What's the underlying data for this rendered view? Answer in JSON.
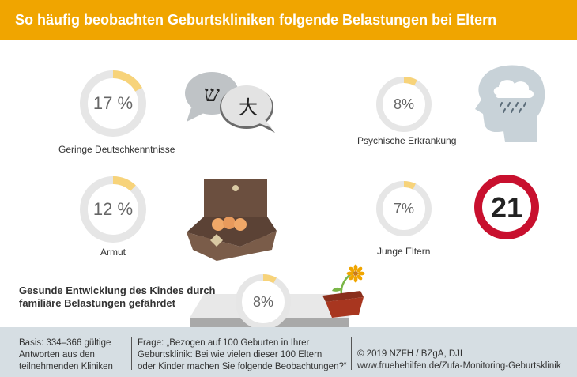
{
  "header": {
    "title": "So häufig beobachten Geburtskliniken folgende Belastungen bei Eltern"
  },
  "chart_data": {
    "type": "donut",
    "items": [
      {
        "label": "Geringe Deutschkenntnisse",
        "value": 17,
        "display": "17 %"
      },
      {
        "label": "Psychische Erkrankung",
        "value": 8,
        "display": "8%"
      },
      {
        "label": "Armut",
        "value": 12,
        "display": "12 %"
      },
      {
        "label": "Junge Eltern",
        "value": 7,
        "display": "7%"
      },
      {
        "label": "Gesunde Entwicklung des Kindes durch familiäre Belastungen gefährdet",
        "value": 8,
        "display": "8%"
      }
    ],
    "colors": {
      "fill": "#f7d37a",
      "track": "#e6e6e6"
    }
  },
  "labels": {
    "bottom_line1": "Gesunde Entwicklung des Kindes durch",
    "bottom_line2": "familiäre Belastungen gefährdet"
  },
  "illustrations": {
    "speech_chars": [
      "ש",
      "大"
    ],
    "sign_number": "21"
  },
  "footer": {
    "basis": [
      "Basis: 334–366 gültige",
      "Antworten aus den",
      "teilnehmenden Kliniken"
    ],
    "frage": [
      "Frage: „Bezogen auf 100 Geburten in Ihrer",
      "Geburtsklinik: Bei wie vielen dieser 100 Eltern",
      "oder Kinder machen Sie folgende Beobachtungen?“"
    ],
    "source": [
      "© 2019 NZFH / BZgA, DJI",
      "www.fruehehilfen.de/Zufa-Monitoring-Geburtsklinik"
    ]
  },
  "icons": [
    "speech-bubbles-icon",
    "head-rain-cloud-icon",
    "wallet-coins-icon",
    "age-21-sign-icon",
    "wilting-flower-pot-icon"
  ]
}
